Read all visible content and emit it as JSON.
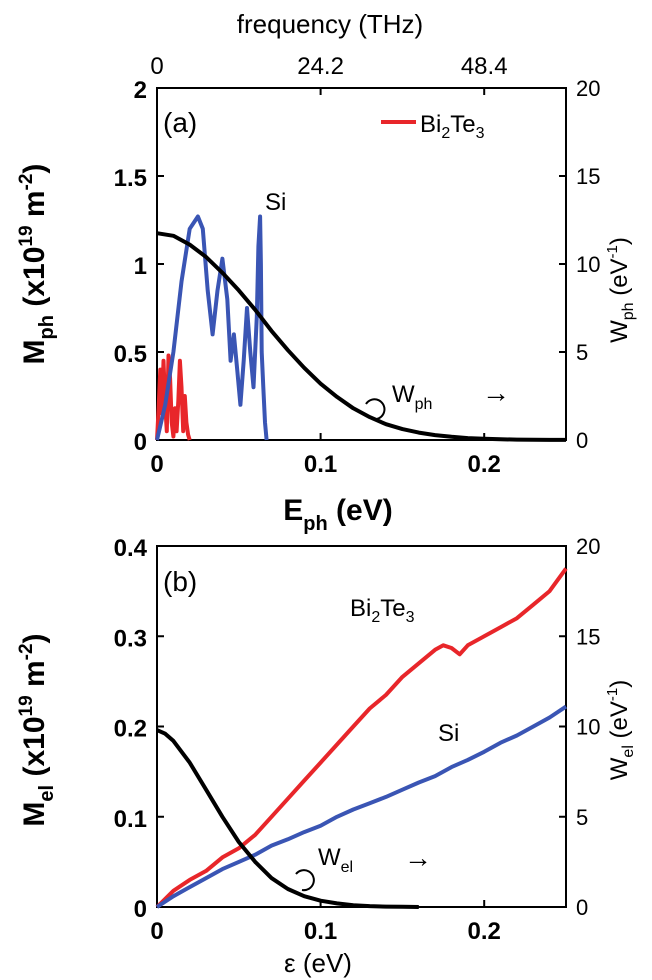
{
  "chart_data": [
    {
      "id": "a",
      "type": "line",
      "panel_label": "(a)",
      "xlabel": {
        "main": "E",
        "sub": "ph",
        "rest": " (eV)"
      },
      "ylabel": {
        "main": "M",
        "sub": "ph",
        "rest_pre": " (x10",
        "sup": "19",
        "rest_mid": " m",
        "sup2": "-2",
        "rest_end": ")"
      },
      "y2label": {
        "main": "W",
        "sub": "ph",
        "rest_pre": " (eV",
        "sup": "-1",
        "rest_end": ")"
      },
      "top_axis_label": "frequency  (THz)",
      "top_ticks": [
        "0",
        "24.2",
        "48.4"
      ],
      "top_tick_positions_ev": [
        0,
        0.1,
        0.2
      ],
      "xlim": [
        0,
        0.25
      ],
      "ylim": [
        0,
        2
      ],
      "y2lim": [
        0,
        20
      ],
      "xticks": [
        "0",
        "0.1",
        "0.2"
      ],
      "xtick_values": [
        0,
        0.1,
        0.2
      ],
      "yticks": [
        "0",
        "0.5",
        "1",
        "1.5",
        "2"
      ],
      "ytick_values": [
        0,
        0.5,
        1,
        1.5,
        2
      ],
      "y2ticks": [
        "0",
        "5",
        "10",
        "15",
        "20"
      ],
      "y2tick_values": [
        0,
        5,
        10,
        15,
        20
      ],
      "legend": {
        "name_main": "Bi",
        "name_sub1": "2",
        "name_mid": "Te",
        "name_sub2": "3",
        "color": "#e8262a"
      },
      "annotations": [
        {
          "text": "Si"
        },
        {
          "text_main": "W",
          "text_sub": "ph",
          "arrow": "→"
        }
      ],
      "series": [
        {
          "name": "Bi2Te3",
          "color": "#e8262a",
          "x": [
            0,
            0.001,
            0.002,
            0.003,
            0.004,
            0.005,
            0.006,
            0.007,
            0.008,
            0.009,
            0.01,
            0.011,
            0.012,
            0.013,
            0.014,
            0.015,
            0.016,
            0.017,
            0.018,
            0.019,
            0.02
          ],
          "y": [
            0,
            0.18,
            0.4,
            0.15,
            0.45,
            0.2,
            0.05,
            0.48,
            0.35,
            0.1,
            0.02,
            0.18,
            0.05,
            0.22,
            0.45,
            0.3,
            0.05,
            0.25,
            0.1,
            0.03,
            0
          ]
        },
        {
          "name": "Si",
          "color": "#3a55b4",
          "x": [
            0,
            0.005,
            0.01,
            0.015,
            0.02,
            0.025,
            0.028,
            0.031,
            0.034,
            0.037,
            0.04,
            0.043,
            0.045,
            0.047,
            0.049,
            0.051,
            0.053,
            0.055,
            0.057,
            0.059,
            0.061,
            0.062,
            0.063,
            0.0635,
            0.064,
            0.065,
            0.066,
            0.067
          ],
          "y": [
            0,
            0.2,
            0.5,
            0.9,
            1.2,
            1.27,
            1.2,
            0.85,
            0.6,
            0.85,
            1.03,
            0.8,
            0.45,
            0.6,
            0.4,
            0.2,
            0.45,
            0.75,
            0.5,
            0.3,
            0.7,
            1.1,
            1.27,
            1.0,
            0.5,
            0.3,
            0.1,
            0
          ]
        },
        {
          "name": "Wph",
          "color": "#000000",
          "axis": "right",
          "x": [
            0,
            0.01,
            0.02,
            0.03,
            0.04,
            0.05,
            0.06,
            0.07,
            0.08,
            0.09,
            0.1,
            0.11,
            0.12,
            0.13,
            0.14,
            0.15,
            0.16,
            0.17,
            0.18,
            0.19,
            0.2,
            0.21,
            0.22,
            0.23,
            0.24,
            0.25
          ],
          "y": [
            11.75,
            11.6,
            11.1,
            10.4,
            9.5,
            8.5,
            7.4,
            6.2,
            5.1,
            4.1,
            3.2,
            2.45,
            1.8,
            1.3,
            0.9,
            0.62,
            0.42,
            0.28,
            0.18,
            0.11,
            0.07,
            0.04,
            0.025,
            0.015,
            0.008,
            0.004
          ]
        }
      ]
    },
    {
      "id": "b",
      "type": "line",
      "panel_label": "(b)",
      "xlabel": {
        "main": "ε",
        "rest": " (eV)"
      },
      "ylabel": {
        "main": "M",
        "sub": "el",
        "rest_pre": " (x10",
        "sup": "19",
        "rest_mid": " m",
        "sup2": "-2",
        "rest_end": ")"
      },
      "y2label": {
        "main": "W",
        "sub": "el",
        "rest_pre": " (eV",
        "sup": "-1",
        "rest_end": ")"
      },
      "xlim": [
        0,
        0.25
      ],
      "ylim": [
        0,
        0.4
      ],
      "y2lim": [
        0,
        20
      ],
      "xticks": [
        "0",
        "0.1",
        "0.2"
      ],
      "xtick_values": [
        0,
        0.1,
        0.2
      ],
      "yticks": [
        "0",
        "0.1",
        "0.2",
        "0.3",
        "0.4"
      ],
      "ytick_values": [
        0,
        0.1,
        0.2,
        0.3,
        0.4
      ],
      "y2ticks": [
        "0",
        "5",
        "10",
        "15",
        "20"
      ],
      "y2tick_values": [
        0,
        5,
        10,
        15,
        20
      ],
      "annotations": [
        {
          "text_main": "Bi",
          "text_sub1": "2",
          "text_mid": "Te",
          "text_sub2": "3"
        },
        {
          "text": "Si"
        },
        {
          "text_main": "W",
          "text_sub": "el",
          "arrow": "→"
        }
      ],
      "series": [
        {
          "name": "Bi2Te3",
          "color": "#e8262a",
          "x": [
            0,
            0.01,
            0.02,
            0.03,
            0.04,
            0.05,
            0.06,
            0.07,
            0.08,
            0.09,
            0.1,
            0.11,
            0.12,
            0.13,
            0.14,
            0.15,
            0.16,
            0.17,
            0.175,
            0.18,
            0.185,
            0.19,
            0.2,
            0.21,
            0.22,
            0.23,
            0.24,
            0.25
          ],
          "y": [
            0,
            0.018,
            0.03,
            0.04,
            0.055,
            0.065,
            0.08,
            0.1,
            0.12,
            0.14,
            0.16,
            0.18,
            0.2,
            0.22,
            0.235,
            0.255,
            0.27,
            0.285,
            0.29,
            0.287,
            0.28,
            0.29,
            0.3,
            0.31,
            0.32,
            0.335,
            0.35,
            0.375
          ]
        },
        {
          "name": "Si",
          "color": "#3a55b4",
          "x": [
            0,
            0.01,
            0.02,
            0.03,
            0.04,
            0.05,
            0.06,
            0.07,
            0.08,
            0.09,
            0.1,
            0.11,
            0.12,
            0.13,
            0.14,
            0.15,
            0.16,
            0.17,
            0.18,
            0.19,
            0.2,
            0.21,
            0.22,
            0.23,
            0.24,
            0.25
          ],
          "y": [
            0,
            0.012,
            0.022,
            0.032,
            0.042,
            0.05,
            0.058,
            0.068,
            0.075,
            0.083,
            0.09,
            0.1,
            0.108,
            0.115,
            0.122,
            0.13,
            0.138,
            0.145,
            0.155,
            0.163,
            0.172,
            0.182,
            0.19,
            0.2,
            0.21,
            0.222
          ]
        },
        {
          "name": "Wel",
          "color": "#000000",
          "axis": "right",
          "x": [
            0,
            0.005,
            0.01,
            0.02,
            0.03,
            0.04,
            0.05,
            0.06,
            0.07,
            0.08,
            0.09,
            0.1,
            0.11,
            0.12,
            0.13,
            0.14,
            0.15,
            0.16
          ],
          "y": [
            9.8,
            9.6,
            9.2,
            8.0,
            6.5,
            5.0,
            3.6,
            2.5,
            1.6,
            1.0,
            0.6,
            0.35,
            0.2,
            0.1,
            0.05,
            0.02,
            0.01,
            0
          ]
        }
      ]
    }
  ]
}
